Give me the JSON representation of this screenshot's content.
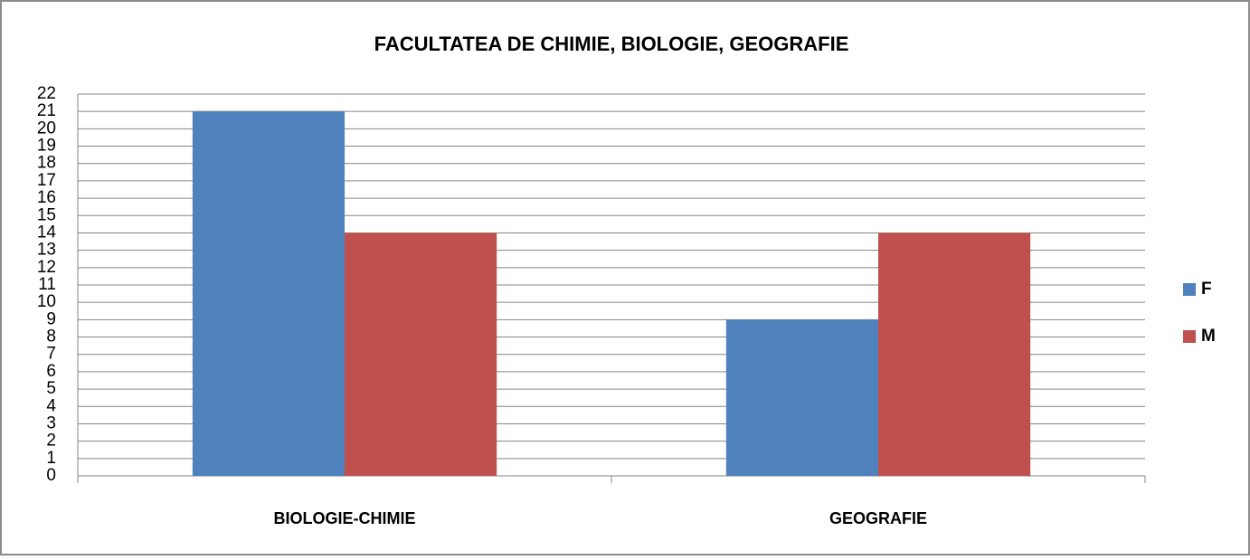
{
  "chart_data": {
    "type": "bar",
    "title": "FACULTATEA DE CHIMIE, BIOLOGIE, GEOGRAFIE",
    "categories": [
      "BIOLOGIE-CHIMIE",
      "GEOGRAFIE"
    ],
    "series": [
      {
        "name": "F",
        "color": "#4f81bd",
        "values": [
          21,
          9
        ]
      },
      {
        "name": "M",
        "color": "#c0504d",
        "values": [
          14,
          14
        ]
      }
    ],
    "ylim": [
      0,
      22
    ],
    "yticks": [
      0,
      1,
      2,
      3,
      4,
      5,
      6,
      7,
      8,
      9,
      10,
      11,
      12,
      13,
      14,
      15,
      16,
      17,
      18,
      19,
      20,
      21,
      22
    ],
    "grid": true,
    "legend": "right"
  }
}
